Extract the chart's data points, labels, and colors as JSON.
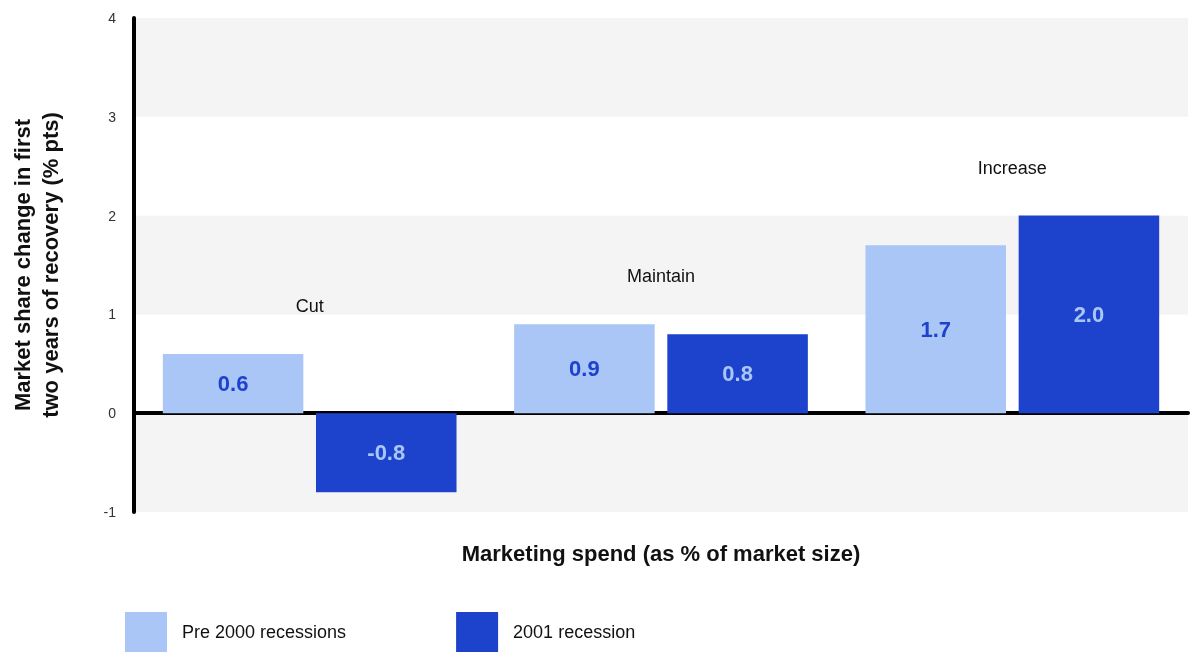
{
  "chart_data": {
    "type": "bar",
    "xlabel": "Marketing spend (as % of market size)",
    "ylabel": "Market share change in first\ntwo years of recovery (% pts)",
    "categories": [
      "Cut",
      "Maintain",
      "Increase"
    ],
    "series": [
      {
        "name": "Pre 2000 recessions",
        "color": "#a9c6f7",
        "values": [
          0.6,
          0.9,
          1.7
        ],
        "value_labels": [
          "0.6",
          "0.9",
          "1.7"
        ]
      },
      {
        "name": "2001 recession",
        "color": "#1d43cc",
        "values": [
          -0.8,
          0.8,
          2.0
        ],
        "value_labels": [
          "-0.8",
          "0.8",
          "2.0"
        ]
      }
    ],
    "ylim": [
      -1,
      4
    ],
    "yticks": [
      -1,
      0,
      1,
      2,
      3,
      4
    ],
    "grid": true,
    "legend": "bottom left"
  }
}
